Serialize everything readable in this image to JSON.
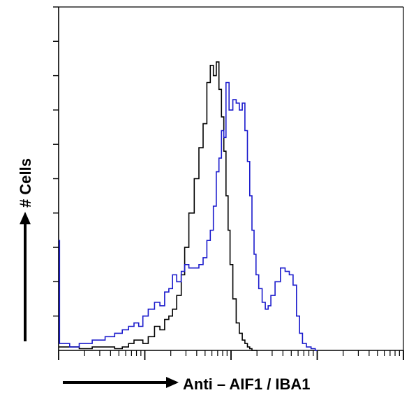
{
  "chart_data": {
    "type": "line",
    "title": "",
    "xlabel": "Anti – AIF1 / IBA1",
    "ylabel": "# Cells",
    "x_scale": "log",
    "xlim": [
      1,
      10000
    ],
    "ylim": [
      0,
      100
    ],
    "grid": false,
    "legend": "none",
    "series": [
      {
        "color": "#000000",
        "x": [
          1,
          1.5,
          2,
          3,
          4,
          5,
          6,
          7,
          8,
          9,
          10,
          12,
          14,
          16,
          18,
          20,
          22,
          25,
          28,
          30,
          35,
          40,
          45,
          50,
          55,
          60,
          65,
          70,
          75,
          80,
          85,
          90,
          95,
          100,
          110,
          120,
          130,
          140,
          150,
          160,
          170,
          180,
          190,
          200
        ],
        "y": [
          1,
          1,
          0.5,
          1,
          1,
          0.5,
          1,
          2,
          3,
          3,
          2,
          4,
          7,
          6,
          9,
          10,
          12,
          16,
          22,
          30,
          40,
          50,
          59,
          66,
          78,
          83,
          80,
          84,
          76,
          68,
          58,
          45,
          35,
          25,
          15,
          8,
          5,
          3,
          2,
          1,
          0.5,
          0,
          0,
          0
        ]
      },
      {
        "color": "#1a1acc",
        "x": [
          1,
          1.05,
          1.2,
          1.5,
          2,
          3,
          4,
          5,
          6,
          7,
          8,
          9,
          10,
          12,
          14,
          16,
          18,
          20,
          22,
          25,
          28,
          30,
          35,
          40,
          45,
          50,
          55,
          60,
          65,
          70,
          75,
          80,
          85,
          90,
          100,
          110,
          120,
          130,
          140,
          150,
          160,
          170,
          180,
          190,
          200,
          220,
          240,
          260,
          280,
          300,
          350,
          400,
          450,
          500,
          550,
          600,
          650,
          700,
          800,
          900,
          1000
        ],
        "y": [
          32,
          2,
          2,
          1,
          2,
          3,
          4,
          5,
          6,
          7,
          8,
          7,
          10,
          12,
          14,
          13,
          17,
          18,
          22,
          20,
          23,
          25,
          24,
          24,
          25,
          27,
          32,
          35,
          42,
          52,
          56,
          64,
          62,
          78,
          70,
          73,
          72,
          70,
          72,
          64,
          55,
          45,
          35,
          28,
          22,
          18,
          14,
          12,
          13,
          16,
          20,
          24,
          23,
          22,
          19,
          10,
          5,
          2,
          1,
          0.5,
          0
        ]
      }
    ]
  }
}
